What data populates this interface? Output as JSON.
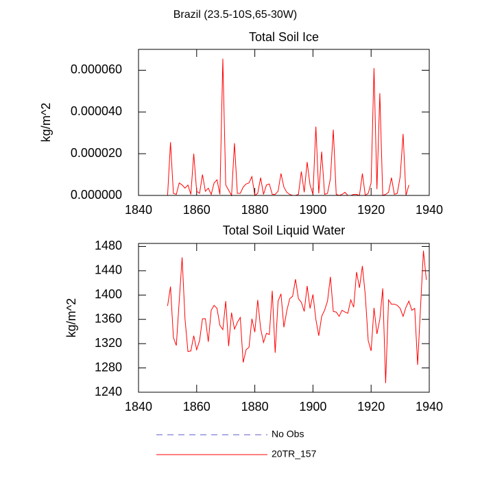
{
  "title": "Brazil (23.5-10S,65-30W)",
  "legend": [
    {
      "name": "No Obs",
      "color": "#5a5ac8",
      "dash": true
    },
    {
      "name": "20TR_157",
      "color": "#ff0000"
    }
  ],
  "chart_data": [
    {
      "type": "line",
      "title": "Total Soil Ice",
      "y_label": "kg/m^2",
      "x": [
        1850,
        1851,
        1852,
        1853,
        1854,
        1855,
        1856,
        1857,
        1858,
        1859,
        1860,
        1861,
        1862,
        1863,
        1864,
        1865,
        1866,
        1867,
        1868,
        1869,
        1870,
        1871,
        1872,
        1873,
        1874,
        1875,
        1876,
        1877,
        1878,
        1879,
        1880,
        1881,
        1882,
        1883,
        1884,
        1885,
        1886,
        1887,
        1888,
        1889,
        1890,
        1891,
        1892,
        1893,
        1894,
        1895,
        1896,
        1897,
        1898,
        1899,
        1900,
        1901,
        1902,
        1903,
        1904,
        1905,
        1906,
        1907,
        1908,
        1909,
        1910,
        1911,
        1912,
        1913,
        1914,
        1915,
        1916,
        1917,
        1918,
        1919,
        1920,
        1921,
        1922,
        1923,
        1924,
        1925,
        1926,
        1927,
        1928,
        1929,
        1930,
        1931,
        1932,
        1933
      ],
      "series": [
        {
          "color": "#ff0000",
          "values": [
            0,
            2.55e-05,
            1e-06,
            5e-07,
            6e-06,
            5e-06,
            3.5e-06,
            5e-06,
            5e-07,
            2e-05,
            2e-06,
            1e-06,
            1e-05,
            2e-06,
            3.5e-06,
            5e-07,
            6e-06,
            7.5e-06,
            5e-07,
            6.55e-05,
            5e-06,
            2.5e-06,
            0,
            2.5e-05,
            1e-06,
            1e-06,
            4e-06,
            5.5e-06,
            6e-06,
            9e-06,
            0,
            1e-06,
            8.5e-06,
            5e-07,
            5e-06,
            5.5e-06,
            5e-07,
            5e-07,
            2e-06,
            1.05e-05,
            4e-06,
            1.5e-06,
            5e-07,
            0,
            0,
            5e-07,
            1.15e-05,
            1.5e-06,
            1.6e-05,
            5e-06,
            5e-07,
            3.3e-05,
            1e-06,
            2.1e-05,
            5e-07,
            1e-06,
            8e-06,
            3.15e-05,
            5e-07,
            0,
            5e-07,
            1.5e-06,
            0,
            0,
            5e-07,
            5e-07,
            0,
            1.05e-05,
            0,
            1e-06,
            6e-06,
            6.1e-05,
            3e-06,
            4.9e-05,
            0,
            5e-07,
            1.5e-06,
            8.5e-06,
            5e-07,
            1e-06,
            9e-06,
            2.95e-05,
            0,
            5e-06
          ]
        }
      ],
      "xlim": [
        1840,
        1940
      ],
      "xticks": [
        1840,
        1860,
        1880,
        1900,
        1920,
        1940
      ],
      "ylim": [
        0,
        7e-05
      ],
      "yticks": [
        {
          "value": 0,
          "label": "0.000000"
        },
        {
          "value": 2e-05,
          "label": "0.000020"
        },
        {
          "value": 4e-05,
          "label": "0.000040"
        },
        {
          "value": 6e-05,
          "label": "0.000060"
        }
      ]
    },
    {
      "type": "line",
      "title": "Total Soil Liquid Water",
      "y_label": "kg/m^2",
      "x": [
        1850,
        1851,
        1852,
        1853,
        1854,
        1855,
        1856,
        1857,
        1858,
        1859,
        1860,
        1861,
        1862,
        1863,
        1864,
        1865,
        1866,
        1867,
        1868,
        1869,
        1870,
        1871,
        1872,
        1873,
        1874,
        1875,
        1876,
        1877,
        1878,
        1879,
        1880,
        1881,
        1882,
        1883,
        1884,
        1885,
        1886,
        1887,
        1888,
        1889,
        1890,
        1891,
        1892,
        1893,
        1894,
        1895,
        1896,
        1897,
        1898,
        1899,
        1900,
        1901,
        1902,
        1903,
        1904,
        1905,
        1906,
        1907,
        1908,
        1909,
        1910,
        1911,
        1912,
        1913,
        1914,
        1915,
        1916,
        1917,
        1918,
        1919,
        1920,
        1921,
        1922,
        1923,
        1924,
        1925,
        1926,
        1927,
        1928,
        1929,
        1930,
        1931,
        1932,
        1933,
        1934,
        1935,
        1936,
        1937,
        1938,
        1939
      ],
      "series": [
        {
          "color": "#ff0000",
          "values": [
            1382,
            1414,
            1330,
            1317,
            1390,
            1462,
            1360,
            1307,
            1308,
            1333,
            1310,
            1325,
            1361,
            1361,
            1323,
            1375,
            1383,
            1378,
            1350,
            1343,
            1390,
            1316,
            1371,
            1344,
            1355,
            1363,
            1289,
            1310,
            1314,
            1361,
            1339,
            1392,
            1345,
            1322,
            1337,
            1335,
            1407,
            1305,
            1390,
            1402,
            1347,
            1374,
            1394,
            1398,
            1426,
            1394,
            1388,
            1373,
            1415,
            1378,
            1401,
            1360,
            1333,
            1365,
            1375,
            1390,
            1430,
            1373,
            1372,
            1365,
            1375,
            1372,
            1370,
            1392,
            1380,
            1438,
            1412,
            1448,
            1400,
            1325,
            1308,
            1379,
            1336,
            1360,
            1411,
            1255,
            1392,
            1385,
            1385,
            1383,
            1378,
            1365,
            1380,
            1390,
            1375,
            1378,
            1285,
            1380,
            1473,
            1425
          ]
        }
      ],
      "xlim": [
        1840,
        1940
      ],
      "xticks": [
        1840,
        1860,
        1880,
        1900,
        1920,
        1940
      ],
      "ylim": [
        1240,
        1485
      ],
      "yticks": [
        1240,
        1280,
        1320,
        1360,
        1400,
        1440,
        1480
      ]
    }
  ]
}
